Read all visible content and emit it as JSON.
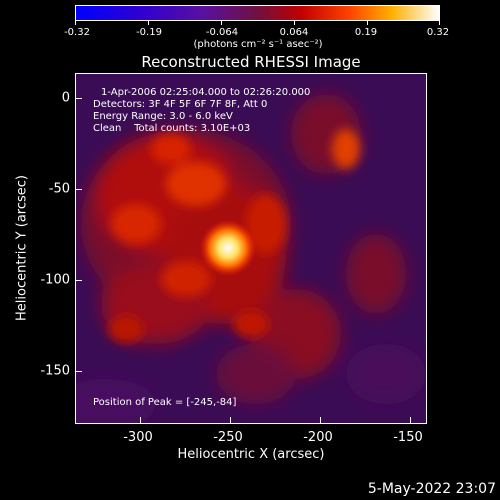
{
  "colorbar": {
    "tick_labels": [
      "-0.32",
      "-0.19",
      "-0.064",
      "0.064",
      "0.19",
      "0.32"
    ],
    "units_label": "(photons cm⁻² s⁻¹ asec⁻²)"
  },
  "title": "Reconstructed RHESSI Image",
  "info": {
    "time_range": "1-Apr-2006 02:25:04.000 to 02:26:20.000",
    "detectors": "Detectors: 3F 4F 5F 6F 7F 8F, Att 0",
    "energy": "Energy Range: 3.0 - 6.0 keV",
    "clean": "Clean    Total counts: 3.10E+03"
  },
  "peak_label": "Position of Peak = [-245,-84]",
  "axes": {
    "xlabel": "Heliocentric X (arcsec)",
    "ylabel": "Heliocentric Y (arcsec)",
    "x_ticks": [
      "-300",
      "-250",
      "-200",
      "-150"
    ],
    "y_ticks": [
      "0",
      "-50",
      "-100",
      "-150"
    ],
    "x_range": [
      -335,
      -140
    ],
    "y_range": [
      -178,
      12
    ]
  },
  "peak_position": [
    -245,
    -84
  ],
  "footer_date": "5-May-2022 23:07",
  "colors": {
    "colormap": [
      "#0000ff",
      "#4b00a8",
      "#6a1a6a",
      "#c00000",
      "#ff6000",
      "#ffd000",
      "#ffffff"
    ]
  }
}
